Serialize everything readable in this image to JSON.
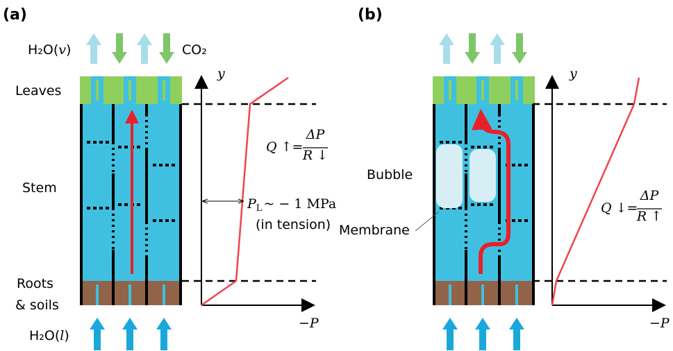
{
  "panel_a": {
    "label": "(a)",
    "top_flux": {
      "formula": "H₂O(",
      "phase": "v",
      "close": ")"
    },
    "co2": "CO₂",
    "zones": {
      "leaves": "Leaves",
      "stem": "Stem",
      "roots": "Roots",
      "soils": "& soils"
    },
    "bottom_flux": {
      "formula": "H₂O(",
      "phase": "l",
      "close": ")"
    },
    "plot": {
      "y_label": "y",
      "x_label": "−P",
      "equation": {
        "left": "Q ↑=",
        "numerator": "ΔP",
        "denominator": "R ↓"
      },
      "pressure": {
        "symbol": "P",
        "subscript": "L",
        "rest": "~ − 1 MPa"
      },
      "note": "(in tension)"
    }
  },
  "panel_b": {
    "label": "(b)",
    "bubble": "Bubble",
    "membrane": "Membrane",
    "plot": {
      "y_label": "y",
      "x_label": "−P",
      "equation": {
        "left": "Q ↓=",
        "numerator": "ΔP",
        "denominator": "R ↑"
      }
    }
  }
}
